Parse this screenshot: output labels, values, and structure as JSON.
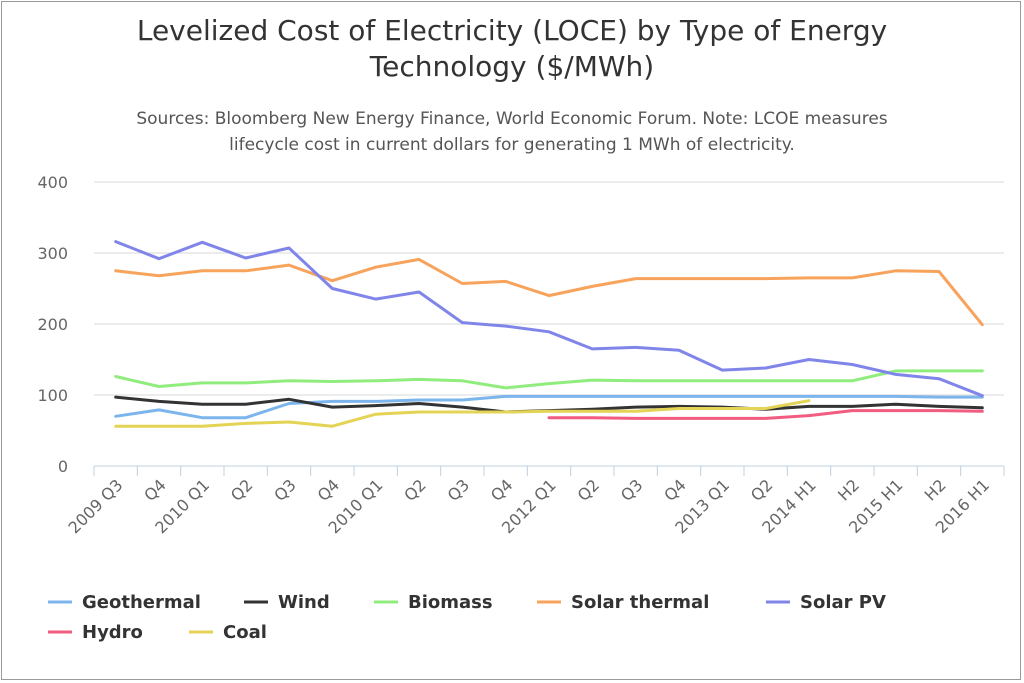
{
  "chart_data": {
    "type": "line",
    "title": "Levelized Cost of Electricity (LOCE) by Type of Energy Technology ($/MWh)",
    "title_lines": [
      "Levelized Cost of Electricity (LOCE) by Type of Energy",
      "Technology ($/MWh)"
    ],
    "subtitle": "Sources: Bloomberg New Energy Finance, World Economic Forum. Note: LCOE measures lifecycle cost in current dollars for generating 1 MWh of electricity.",
    "subtitle_lines": [
      "Sources: Bloomberg New Energy Finance, World Economic Forum. Note: LCOE measures",
      "lifecycle cost in current dollars for generating 1 MWh of electricity."
    ],
    "xlabel": "",
    "ylabel": "",
    "ylim": [
      0,
      400
    ],
    "yticks": [
      0,
      100,
      200,
      300,
      400
    ],
    "grid": true,
    "legend_position": "bottom",
    "categories": [
      "2009 Q3",
      "Q4",
      "2010 Q1",
      "Q2",
      "Q3",
      "Q4",
      "2010 Q1",
      "Q2",
      "Q3",
      "Q4",
      "2012 Q1",
      "Q2",
      "Q3",
      "Q4",
      "2013 Q1",
      "Q2",
      "2014 H1",
      "H2",
      "2015 H1",
      "H2",
      "2016 H1"
    ],
    "series": [
      {
        "name": "Geothermal",
        "color": "#7cb5ec",
        "values": [
          70,
          79,
          68,
          68,
          88,
          91,
          91,
          93,
          93,
          98,
          98,
          98,
          98,
          98,
          98,
          98,
          98,
          98,
          98,
          97,
          97
        ]
      },
      {
        "name": "Wind",
        "color": "#333333",
        "values": [
          97,
          91,
          87,
          87,
          94,
          83,
          85,
          88,
          83,
          76,
          78,
          80,
          83,
          84,
          83,
          80,
          84,
          84,
          87,
          84,
          82
        ]
      },
      {
        "name": "Biomass",
        "color": "#90ed7d",
        "values": [
          126,
          112,
          117,
          117,
          120,
          119,
          120,
          122,
          120,
          110,
          116,
          121,
          120,
          120,
          120,
          120,
          120,
          120,
          134,
          134,
          134
        ]
      },
      {
        "name": "Solar thermal",
        "color": "#f7a35c",
        "values": [
          275,
          268,
          275,
          275,
          283,
          261,
          280,
          291,
          257,
          260,
          240,
          253,
          264,
          264,
          264,
          264,
          265,
          265,
          275,
          274,
          199
        ]
      },
      {
        "name": "Solar PV",
        "color": "#8085e9",
        "values": [
          316,
          292,
          315,
          293,
          307,
          250,
          235,
          245,
          202,
          197,
          189,
          165,
          167,
          163,
          135,
          138,
          150,
          143,
          129,
          123,
          99
        ]
      },
      {
        "name": "Hydro",
        "color": "#f15c80",
        "values": [
          null,
          null,
          null,
          null,
          null,
          null,
          null,
          null,
          null,
          null,
          68,
          68,
          67,
          67,
          67,
          67,
          71,
          78,
          78,
          78,
          77
        ]
      },
      {
        "name": "Coal",
        "color": "#e4d354",
        "values": [
          56,
          56,
          56,
          60,
          62,
          56,
          73,
          76,
          76,
          76,
          77,
          77,
          77,
          81,
          81,
          81,
          92,
          null,
          null,
          null,
          null
        ]
      }
    ]
  }
}
